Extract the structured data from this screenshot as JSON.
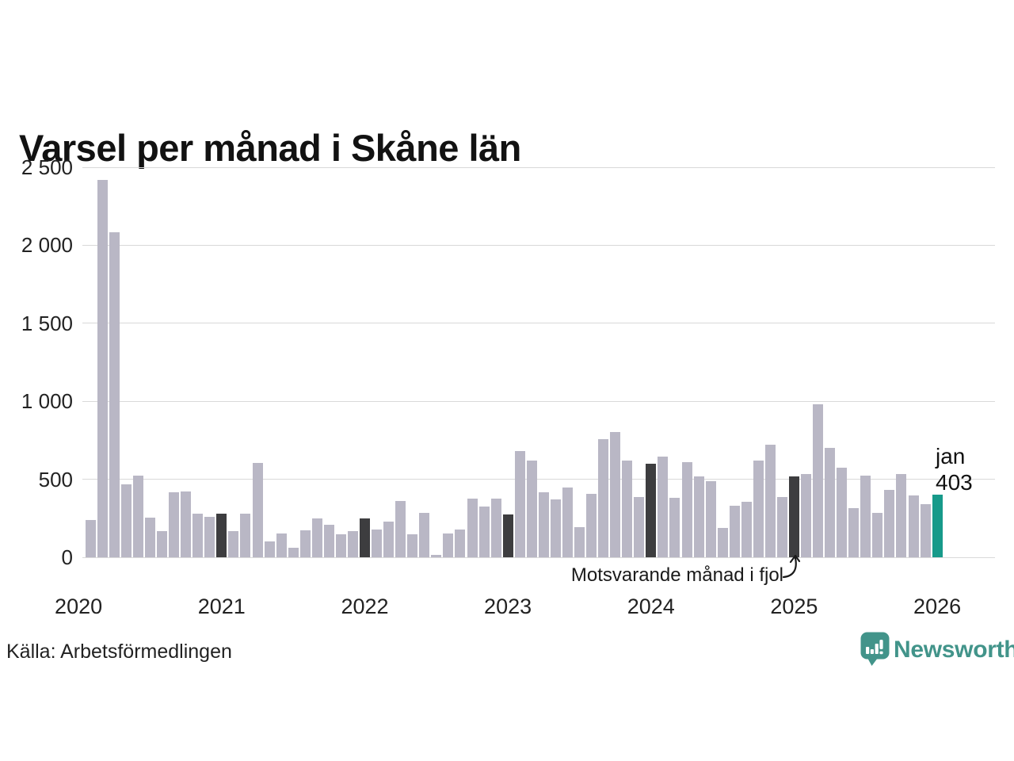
{
  "title": "Varsel per månad i Skåne län",
  "source": "Källa: Arbetsförmedlingen",
  "branding": {
    "name": "Newsworthy"
  },
  "annotation": {
    "text": "Motsvarande månad i fjol"
  },
  "current_point_label": {
    "month": "jan",
    "value": "403"
  },
  "colors": {
    "bar_default": "#b9b7c5",
    "bar_previous_january": "#3d3d3f",
    "bar_current": "#179a8a",
    "gridline": "#d9d9d9",
    "brand_teal": "#42948a"
  },
  "chart_data": {
    "type": "bar",
    "title": "Varsel per månad i Skåne län",
    "xlabel": "",
    "ylabel": "",
    "ylim": [
      0,
      2500
    ],
    "grid": "horizontal",
    "legend_position": "none",
    "yticks": [
      {
        "value": 0,
        "label": "0"
      },
      {
        "value": 500,
        "label": "500"
      },
      {
        "value": 1000,
        "label": "1 000"
      },
      {
        "value": 1500,
        "label": "1 500"
      },
      {
        "value": 2000,
        "label": "2 000"
      },
      {
        "value": 2500,
        "label": "2 500"
      }
    ],
    "x_year_labels": [
      "2020",
      "2021",
      "2022",
      "2023",
      "2024",
      "2025",
      "2026"
    ],
    "months": [
      {
        "month": "2020-02",
        "value": 240,
        "kind": "default"
      },
      {
        "month": "2020-03",
        "value": 2420,
        "kind": "default"
      },
      {
        "month": "2020-04",
        "value": 2085,
        "kind": "default"
      },
      {
        "month": "2020-05",
        "value": 470,
        "kind": "default"
      },
      {
        "month": "2020-06",
        "value": 525,
        "kind": "default"
      },
      {
        "month": "2020-07",
        "value": 255,
        "kind": "default"
      },
      {
        "month": "2020-08",
        "value": 170,
        "kind": "default"
      },
      {
        "month": "2020-09",
        "value": 415,
        "kind": "default"
      },
      {
        "month": "2020-10",
        "value": 420,
        "kind": "default"
      },
      {
        "month": "2020-11",
        "value": 280,
        "kind": "default"
      },
      {
        "month": "2020-12",
        "value": 260,
        "kind": "default"
      },
      {
        "month": "2021-01",
        "value": 280,
        "kind": "jan-highlight"
      },
      {
        "month": "2021-02",
        "value": 170,
        "kind": "default"
      },
      {
        "month": "2021-03",
        "value": 282,
        "kind": "default"
      },
      {
        "month": "2021-04",
        "value": 605,
        "kind": "default"
      },
      {
        "month": "2021-05",
        "value": 100,
        "kind": "default"
      },
      {
        "month": "2021-06",
        "value": 155,
        "kind": "default"
      },
      {
        "month": "2021-07",
        "value": 60,
        "kind": "default"
      },
      {
        "month": "2021-08",
        "value": 175,
        "kind": "default"
      },
      {
        "month": "2021-09",
        "value": 250,
        "kind": "default"
      },
      {
        "month": "2021-10",
        "value": 210,
        "kind": "default"
      },
      {
        "month": "2021-11",
        "value": 150,
        "kind": "default"
      },
      {
        "month": "2021-12",
        "value": 170,
        "kind": "default"
      },
      {
        "month": "2022-01",
        "value": 250,
        "kind": "jan-highlight"
      },
      {
        "month": "2022-02",
        "value": 180,
        "kind": "default"
      },
      {
        "month": "2022-03",
        "value": 230,
        "kind": "default"
      },
      {
        "month": "2022-04",
        "value": 360,
        "kind": "default"
      },
      {
        "month": "2022-05",
        "value": 150,
        "kind": "default"
      },
      {
        "month": "2022-06",
        "value": 285,
        "kind": "default"
      },
      {
        "month": "2022-07",
        "value": 15,
        "kind": "default"
      },
      {
        "month": "2022-08",
        "value": 155,
        "kind": "default"
      },
      {
        "month": "2022-09",
        "value": 180,
        "kind": "default"
      },
      {
        "month": "2022-10",
        "value": 375,
        "kind": "default"
      },
      {
        "month": "2022-11",
        "value": 325,
        "kind": "default"
      },
      {
        "month": "2022-12",
        "value": 378,
        "kind": "default"
      },
      {
        "month": "2023-01",
        "value": 275,
        "kind": "jan-highlight"
      },
      {
        "month": "2023-02",
        "value": 680,
        "kind": "default"
      },
      {
        "month": "2023-03",
        "value": 620,
        "kind": "default"
      },
      {
        "month": "2023-04",
        "value": 415,
        "kind": "default"
      },
      {
        "month": "2023-05",
        "value": 370,
        "kind": "default"
      },
      {
        "month": "2023-06",
        "value": 445,
        "kind": "default"
      },
      {
        "month": "2023-07",
        "value": 195,
        "kind": "default"
      },
      {
        "month": "2023-08",
        "value": 405,
        "kind": "default"
      },
      {
        "month": "2023-09",
        "value": 755,
        "kind": "default"
      },
      {
        "month": "2023-10",
        "value": 805,
        "kind": "default"
      },
      {
        "month": "2023-11",
        "value": 620,
        "kind": "default"
      },
      {
        "month": "2023-12",
        "value": 385,
        "kind": "default"
      },
      {
        "month": "2024-01",
        "value": 598,
        "kind": "jan-highlight"
      },
      {
        "month": "2024-02",
        "value": 645,
        "kind": "default"
      },
      {
        "month": "2024-03",
        "value": 380,
        "kind": "default"
      },
      {
        "month": "2024-04",
        "value": 610,
        "kind": "default"
      },
      {
        "month": "2024-05",
        "value": 520,
        "kind": "default"
      },
      {
        "month": "2024-06",
        "value": 490,
        "kind": "default"
      },
      {
        "month": "2024-07",
        "value": 190,
        "kind": "default"
      },
      {
        "month": "2024-08",
        "value": 330,
        "kind": "default"
      },
      {
        "month": "2024-09",
        "value": 358,
        "kind": "default"
      },
      {
        "month": "2024-10",
        "value": 620,
        "kind": "default"
      },
      {
        "month": "2024-11",
        "value": 723,
        "kind": "default"
      },
      {
        "month": "2024-12",
        "value": 385,
        "kind": "default"
      },
      {
        "month": "2025-01",
        "value": 517,
        "kind": "jan-highlight"
      },
      {
        "month": "2025-02",
        "value": 533,
        "kind": "default"
      },
      {
        "month": "2025-03",
        "value": 982,
        "kind": "default"
      },
      {
        "month": "2025-04",
        "value": 703,
        "kind": "default"
      },
      {
        "month": "2025-05",
        "value": 576,
        "kind": "default"
      },
      {
        "month": "2025-06",
        "value": 315,
        "kind": "default"
      },
      {
        "month": "2025-07",
        "value": 525,
        "kind": "default"
      },
      {
        "month": "2025-08",
        "value": 285,
        "kind": "default"
      },
      {
        "month": "2025-09",
        "value": 430,
        "kind": "default"
      },
      {
        "month": "2025-10",
        "value": 533,
        "kind": "default"
      },
      {
        "month": "2025-11",
        "value": 395,
        "kind": "default"
      },
      {
        "month": "2025-12",
        "value": 340,
        "kind": "default"
      },
      {
        "month": "2026-01",
        "value": 403,
        "kind": "current"
      }
    ]
  }
}
